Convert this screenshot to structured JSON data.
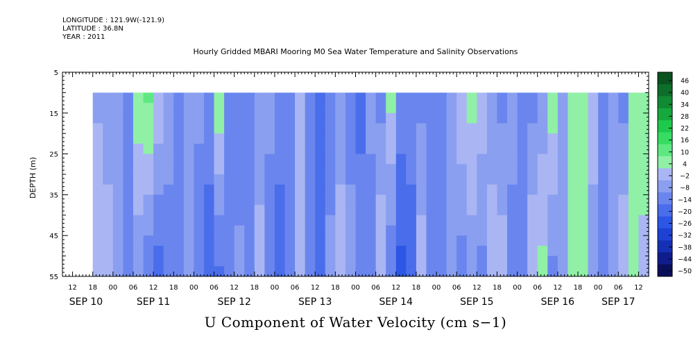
{
  "header": {
    "longitude": "LONGITUDE : 121.9W(-121.9)",
    "latitude": "LATITUDE : 36.8N",
    "year": "YEAR : 2011"
  },
  "colors": {
    "strong_neg": "#0d1f7a",
    "neg": "#3d5ce8",
    "weak_neg": "#9aa8ef",
    "near_zero": "#c9cff5",
    "weak_pos": "#8ff0a8",
    "pos": "#22dd55",
    "strong_pos": "#0b5c22"
  },
  "chart_data": {
    "type": "heatmap",
    "title": "Hourly Gridded MBARI Mooring M0 Sea Water Temperature and Salinity Observations",
    "xlabel": "U Component of Water Velocity (cm s−1)",
    "ylabel": "DEPTH (m)",
    "x_range_hours": [
      "SEP 10 09:00",
      "SEP 17 15:00"
    ],
    "data_start": "SEP 10 18:00",
    "xlim_hours_from_sep10_00": [
      9,
      183
    ],
    "ylim": [
      5,
      55
    ],
    "y_inverted": true,
    "y_ticks": [
      5,
      15,
      25,
      35,
      45,
      55
    ],
    "x_hour_ticks": [
      "12",
      "18",
      "00",
      "06",
      "12",
      "18",
      "00",
      "06",
      "12",
      "18",
      "00",
      "06",
      "12",
      "18",
      "00",
      "06",
      "12",
      "18",
      "00",
      "06",
      "12",
      "18",
      "00",
      "06",
      "12",
      "18",
      "00",
      "06",
      "12",
      "18",
      "00",
      "06"
    ],
    "x_hour_tick_positions": [
      12,
      18,
      24,
      30,
      36,
      42,
      48,
      54,
      60,
      66,
      72,
      78,
      84,
      90,
      96,
      102,
      108,
      114,
      120,
      126,
      132,
      138,
      144,
      150,
      156,
      162,
      168,
      174,
      180,
      186,
      192,
      198
    ],
    "x_day_labels": [
      {
        "label": "SEP 10",
        "hour": 16
      },
      {
        "label": "SEP 11",
        "hour": 36
      },
      {
        "label": "SEP 12",
        "hour": 60
      },
      {
        "label": "SEP 13",
        "hour": 84
      },
      {
        "label": "SEP 14",
        "hour": 108
      },
      {
        "label": "SEP 15",
        "hour": 132
      },
      {
        "label": "SEP 16",
        "hour": 156
      },
      {
        "label": "SEP 17",
        "hour": 174
      }
    ],
    "data_depth_range": [
      10,
      55
    ],
    "data_hour_range": [
      18,
      183
    ],
    "colorbar_levels": [
      -50,
      -44,
      -38,
      -32,
      -26,
      -20,
      -14,
      -8,
      -2,
      4,
      10,
      16,
      22,
      28,
      34,
      40,
      46
    ],
    "colorbar_labels": [
      "46",
      "40",
      "34",
      "28",
      "22",
      "16",
      "10",
      "4",
      "−2",
      "−8",
      "−14",
      "−20",
      "−26",
      "−32",
      "−38",
      "−44",
      "−50"
    ],
    "column_profiles": [
      {
        "hour": 18,
        "u_top": -3,
        "u_bottom": 4
      },
      {
        "hour": 21,
        "u_top": -6,
        "u_bottom": 2
      },
      {
        "hour": 24,
        "u_top": -5,
        "u_bottom": -2
      },
      {
        "hour": 27,
        "u_top": -10,
        "u_bottom": -12
      },
      {
        "hour": 30,
        "u_top": 9,
        "u_bottom": -8
      },
      {
        "hour": 33,
        "u_top": 12,
        "u_bottom": -14
      },
      {
        "hour": 36,
        "u_top": 4,
        "u_bottom": -18
      },
      {
        "hour": 39,
        "u_top": -4,
        "u_bottom": -12
      },
      {
        "hour": 42,
        "u_top": -12,
        "u_bottom": -10
      },
      {
        "hour": 45,
        "u_top": -8,
        "u_bottom": -4
      },
      {
        "hour": 48,
        "u_top": -6,
        "u_bottom": -14
      },
      {
        "hour": 51,
        "u_top": -10,
        "u_bottom": -18
      },
      {
        "hour": 54,
        "u_top": 10,
        "u_bottom": -16
      },
      {
        "hour": 57,
        "u_top": -8,
        "u_bottom": -12
      },
      {
        "hour": 60,
        "u_top": -14,
        "u_bottom": -6
      },
      {
        "hour": 63,
        "u_top": -10,
        "u_bottom": -10
      },
      {
        "hour": 66,
        "u_top": -8,
        "u_bottom": 2
      },
      {
        "hour": 69,
        "u_top": -6,
        "u_bottom": -12
      },
      {
        "hour": 72,
        "u_top": -12,
        "u_bottom": -16
      },
      {
        "hour": 75,
        "u_top": -10,
        "u_bottom": -8
      },
      {
        "hour": 78,
        "u_top": 4,
        "u_bottom": 2
      },
      {
        "hour": 81,
        "u_top": -14,
        "u_bottom": -10
      },
      {
        "hour": 84,
        "u_top": -18,
        "u_bottom": -14
      },
      {
        "hour": 87,
        "u_top": -12,
        "u_bottom": -6
      },
      {
        "hour": 90,
        "u_top": -8,
        "u_bottom": 4
      },
      {
        "hour": 93,
        "u_top": -12,
        "u_bottom": -4
      },
      {
        "hour": 96,
        "u_top": -16,
        "u_bottom": -10
      },
      {
        "hour": 99,
        "u_top": -6,
        "u_bottom": -12
      },
      {
        "hour": 102,
        "u_top": -10,
        "u_bottom": 4
      },
      {
        "hour": 105,
        "u_top": 6,
        "u_bottom": -14
      },
      {
        "hour": 108,
        "u_top": -10,
        "u_bottom": -22
      },
      {
        "hour": 111,
        "u_top": -12,
        "u_bottom": -16
      },
      {
        "hour": 114,
        "u_top": -10,
        "u_bottom": 2
      },
      {
        "hour": 117,
        "u_top": -14,
        "u_bottom": -10
      },
      {
        "hour": 120,
        "u_top": -12,
        "u_bottom": -14
      },
      {
        "hour": 123,
        "u_top": -8,
        "u_bottom": -4
      },
      {
        "hour": 126,
        "u_top": 4,
        "u_bottom": -12
      },
      {
        "hour": 129,
        "u_top": 6,
        "u_bottom": -6
      },
      {
        "hour": 132,
        "u_top": 2,
        "u_bottom": -10
      },
      {
        "hour": 135,
        "u_top": -8,
        "u_bottom": 4
      },
      {
        "hour": 138,
        "u_top": -10,
        "u_bottom": 2
      },
      {
        "hour": 141,
        "u_top": -4,
        "u_bottom": -12
      },
      {
        "hour": 144,
        "u_top": -8,
        "u_bottom": -14
      },
      {
        "hour": 147,
        "u_top": -10,
        "u_bottom": 4
      },
      {
        "hour": 150,
        "u_top": -6,
        "u_bottom": 6
      },
      {
        "hour": 153,
        "u_top": 8,
        "u_bottom": -10
      },
      {
        "hour": 156,
        "u_top": -4,
        "u_bottom": -8
      },
      {
        "hour": 159,
        "u_top": 6,
        "u_bottom": 6
      },
      {
        "hour": 162,
        "u_top": 10,
        "u_bottom": 8
      },
      {
        "hour": 165,
        "u_top": 4,
        "u_bottom": -8
      },
      {
        "hour": 168,
        "u_top": -8,
        "u_bottom": -12
      },
      {
        "hour": 171,
        "u_top": -6,
        "u_bottom": -6
      },
      {
        "hour": 174,
        "u_top": -10,
        "u_bottom": 4
      },
      {
        "hour": 177,
        "u_top": 4,
        "u_bottom": 6
      },
      {
        "hour": 180,
        "u_top": 8,
        "u_bottom": 2
      },
      {
        "hour": 183,
        "u_top": 6,
        "u_bottom": -4
      }
    ]
  }
}
